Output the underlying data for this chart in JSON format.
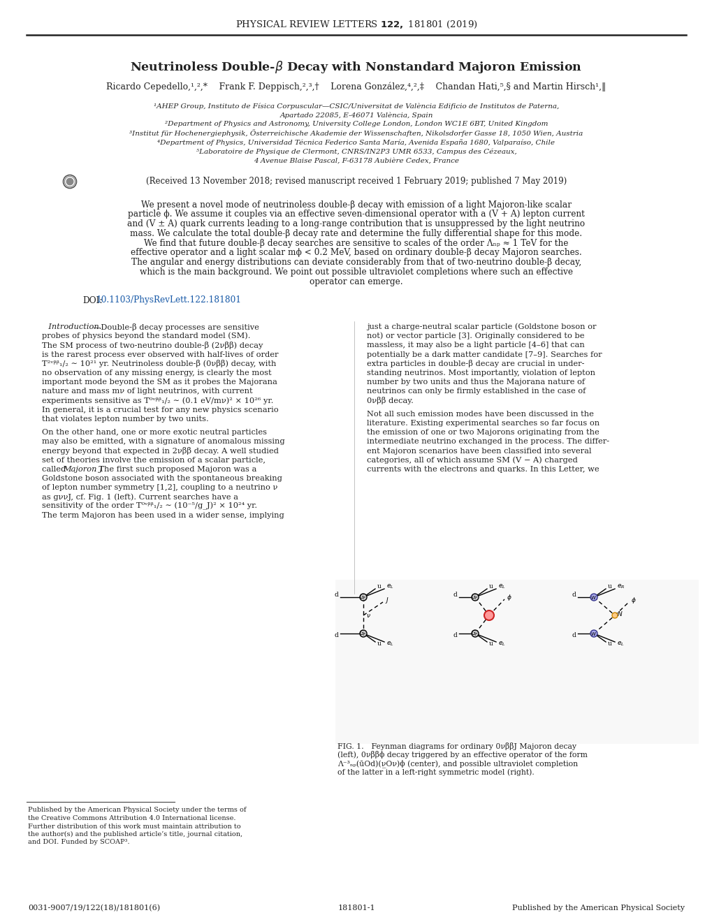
{
  "journal_header_plain": "PHYSICAL REVIEW LETTERS ",
  "journal_header_bold": "122,",
  "journal_header_rest": " 181801 (2019)",
  "title": "Neutrinoless Double-$\\beta$ Decay with Nonstandard Majoron Emission",
  "authors_plain": "Ricardo Cepedello,",
  "authors_sup1": "1,2,*",
  "bg_color": "#ffffff",
  "text_color": "#222222",
  "link_color": "#1a5ba8",
  "footer_left": "0031-9007/19/122(18)/181801(6)",
  "footer_mid": "181801-1",
  "footer_right": "Published by the American Physical Society"
}
